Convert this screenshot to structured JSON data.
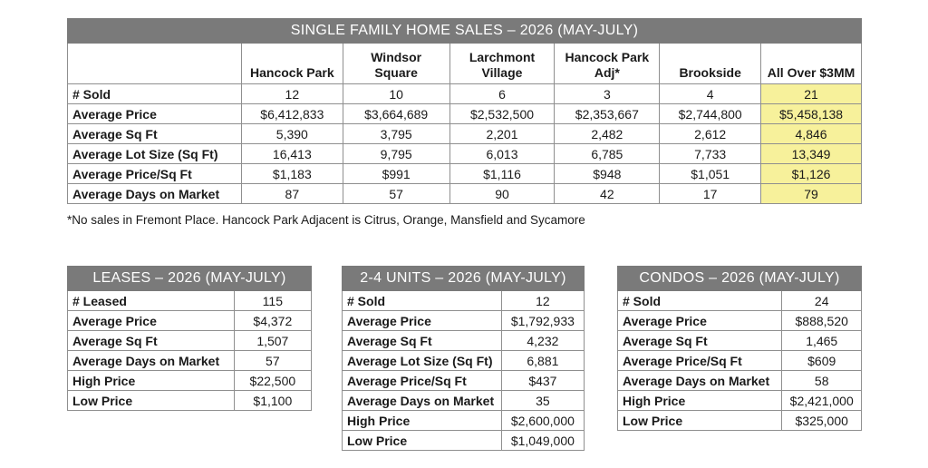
{
  "main": {
    "title": "SINGLE FAMILY HOME SALES – 2026 (MAY-JULY)",
    "columns": [
      "Hancock Park",
      "Windsor Square",
      "Larchmont Village",
      "Hancock Park Adj*",
      "Brookside",
      "All Over $3MM"
    ],
    "rows": [
      {
        "label": "# Sold",
        "values": [
          "12",
          "10",
          "6",
          "3",
          "4",
          "21"
        ]
      },
      {
        "label": "Average Price",
        "values": [
          "$6,412,833",
          "$3,664,689",
          "$2,532,500",
          "$2,353,667",
          "$2,744,800",
          "$5,458,138"
        ]
      },
      {
        "label": "Average Sq Ft",
        "values": [
          "5,390",
          "3,795",
          "2,201",
          "2,482",
          "2,612",
          "4,846"
        ]
      },
      {
        "label": "Average Lot Size (Sq Ft)",
        "values": [
          "16,413",
          "9,795",
          "6,013",
          "6,785",
          "7,733",
          "13,349"
        ]
      },
      {
        "label": "Average Price/Sq Ft",
        "values": [
          "$1,183",
          "$991",
          "$1,116",
          "$948",
          "$1,051",
          "$1,126"
        ]
      },
      {
        "label": "Average Days on Market",
        "values": [
          "87",
          "57",
          "90",
          "42",
          "17",
          "79"
        ]
      }
    ],
    "highlight_color": "#f7f19b"
  },
  "footnote": "*No sales in Fremont Place.  Hancock Park Adjacent is Citrus, Orange, Mansfield and Sycamore",
  "leases": {
    "title": "LEASES – 2026 (MAY-JULY)",
    "rows": [
      {
        "label": "# Leased",
        "value": "115"
      },
      {
        "label": "Average Price",
        "value": "$4,372"
      },
      {
        "label": "Average Sq Ft",
        "value": "1,507"
      },
      {
        "label": "Average Days on Market",
        "value": "57"
      },
      {
        "label": "High Price",
        "value": "$22,500"
      },
      {
        "label": "Low Price",
        "value": "$1,100"
      }
    ]
  },
  "units": {
    "title": "2-4 UNITS – 2026 (MAY-JULY)",
    "rows": [
      {
        "label": "# Sold",
        "value": "12"
      },
      {
        "label": "Average Price",
        "value": "$1,792,933"
      },
      {
        "label": "Average Sq Ft",
        "value": "4,232"
      },
      {
        "label": "Average Lot Size (Sq Ft)",
        "value": "6,881"
      },
      {
        "label": "Average Price/Sq Ft",
        "value": "$437"
      },
      {
        "label": "Average Days on Market",
        "value": "35"
      },
      {
        "label": "High Price",
        "value": "$2,600,000"
      },
      {
        "label": "Low Price",
        "value": "$1,049,000"
      }
    ]
  },
  "condos": {
    "title": "CONDOS – 2026 (MAY-JULY)",
    "rows": [
      {
        "label": "# Sold",
        "value": "24"
      },
      {
        "label": "Average Price",
        "value": "$888,520"
      },
      {
        "label": "Average Sq Ft",
        "value": "1,465"
      },
      {
        "label": "Average Price/Sq Ft",
        "value": "$609"
      },
      {
        "label": "Average Days on Market",
        "value": "58"
      },
      {
        "label": "High Price",
        "value": "$2,421,000"
      },
      {
        "label": "Low Price",
        "value": "$325,000"
      }
    ]
  },
  "header_color": "#7a7a7a"
}
